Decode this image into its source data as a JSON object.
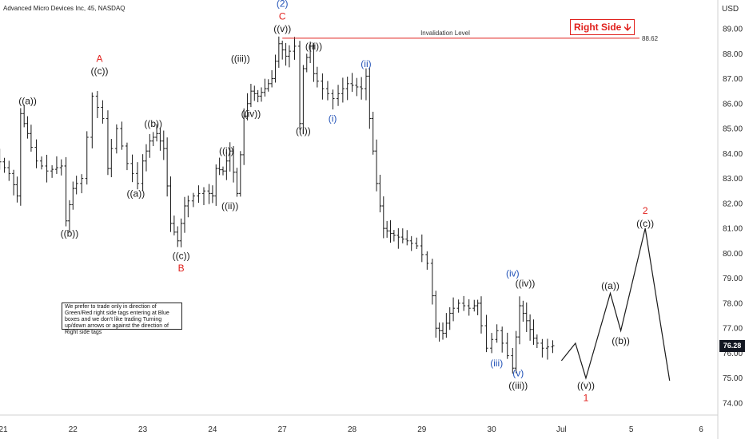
{
  "chart_title": "Advanced Micro Devices Inc, 45, NASDAQ",
  "currency_label": "USD",
  "invalidation": {
    "label": "Invalidation Level",
    "value": "88.62",
    "price": 88.62
  },
  "right_side_tag": {
    "label": "Right Side",
    "arrow": "🡫"
  },
  "current_price": "76.28",
  "note": "We prefer to trade only in direction of Green/Red right side tags entering at Blue boxes and we don't like trading Turning up/down arrows or against the direction of Right side tags",
  "colors": {
    "black": "#1a1a1a",
    "blue": "#2454b8",
    "red": "#e0201c",
    "line": "#e0201c"
  },
  "chart_data": {
    "type": "ohlc",
    "title": "Advanced Micro Devices Inc, 45, NASDAQ",
    "y_range": [
      73.3,
      90.2
    ],
    "y_ticks": [
      74,
      75,
      76,
      77,
      78,
      79,
      80,
      81,
      82,
      83,
      84,
      85,
      86,
      87,
      88,
      89
    ],
    "y_tick_labels": [
      "74.00",
      "75.00",
      "76.00",
      "77.00",
      "78.00",
      "79.00",
      "80.00",
      "81.00",
      "82.00",
      "83.00",
      "84.00",
      "85.00",
      "86.00",
      "87.00",
      "88.00",
      "89.00"
    ],
    "x_range": [
      21,
      38
    ],
    "x_ticks": [
      {
        "x": 21.0,
        "label": "21"
      },
      {
        "x": 22.0,
        "label": "22"
      },
      {
        "x": 23.0,
        "label": "23"
      },
      {
        "x": 24.0,
        "label": "24"
      },
      {
        "x": 25.0,
        "label": "27"
      },
      {
        "x": 26.0,
        "label": "28"
      },
      {
        "x": 27.0,
        "label": "29"
      },
      {
        "x": 28.0,
        "label": "30"
      },
      {
        "x": 29.0,
        "label": "Jul"
      },
      {
        "x": 30.0,
        "label": "5"
      },
      {
        "x": 31.0,
        "label": "6"
      }
    ],
    "price_path": [
      [
        20.95,
        83.9
      ],
      [
        21.15,
        83.2
      ],
      [
        21.25,
        82.3
      ],
      [
        21.3,
        85.6
      ],
      [
        21.4,
        84.8
      ],
      [
        21.55,
        83.7
      ],
      [
        21.7,
        83.3
      ],
      [
        21.9,
        83.5
      ],
      [
        21.95,
        81.3
      ],
      [
        22.05,
        82.6
      ],
      [
        22.2,
        83.0
      ],
      [
        22.35,
        86.3
      ],
      [
        22.5,
        85.4
      ],
      [
        22.55,
        83.4
      ],
      [
        22.7,
        85.0
      ],
      [
        22.85,
        83.6
      ],
      [
        23.0,
        82.8
      ],
      [
        23.05,
        83.7
      ],
      [
        23.15,
        84.5
      ],
      [
        23.25,
        84.8
      ],
      [
        23.35,
        84.2
      ],
      [
        23.45,
        81.2
      ],
      [
        23.55,
        80.5
      ],
      [
        23.65,
        81.9
      ],
      [
        23.8,
        82.3
      ],
      [
        23.95,
        82.5
      ],
      [
        24.05,
        82.3
      ],
      [
        24.1,
        83.4
      ],
      [
        24.2,
        83.3
      ],
      [
        24.3,
        84.1
      ],
      [
        24.4,
        82.4
      ],
      [
        24.5,
        85.5
      ],
      [
        24.6,
        86.5
      ],
      [
        24.7,
        86.3
      ],
      [
        24.8,
        86.6
      ],
      [
        24.9,
        87.0
      ],
      [
        25.0,
        88.4
      ],
      [
        25.1,
        87.9
      ],
      [
        25.25,
        88.3
      ],
      [
        25.3,
        85.2
      ],
      [
        25.35,
        87.4
      ],
      [
        25.45,
        88.3
      ],
      [
        25.5,
        87.2
      ],
      [
        25.65,
        86.6
      ],
      [
        25.8,
        86.2
      ],
      [
        26.0,
        86.8
      ],
      [
        26.2,
        86.6
      ],
      [
        26.25,
        87.1
      ],
      [
        26.3,
        85.4
      ],
      [
        26.4,
        82.8
      ],
      [
        26.5,
        81.0
      ],
      [
        26.6,
        80.8
      ],
      [
        26.85,
        80.5
      ],
      [
        27.0,
        80.3
      ],
      [
        27.15,
        79.6
      ],
      [
        27.25,
        77.0
      ],
      [
        27.35,
        76.8
      ],
      [
        27.45,
        77.6
      ],
      [
        27.6,
        78.0
      ],
      [
        27.75,
        77.8
      ],
      [
        27.85,
        78.0
      ],
      [
        28.0,
        76.2
      ],
      [
        28.15,
        76.9
      ],
      [
        28.3,
        75.9
      ],
      [
        28.35,
        75.4
      ],
      [
        28.45,
        77.9
      ],
      [
        28.55,
        77.3
      ],
      [
        28.65,
        76.6
      ],
      [
        28.8,
        76.2
      ],
      [
        28.95,
        76.3
      ]
    ],
    "projection": [
      [
        29.0,
        75.7
      ],
      [
        29.2,
        76.4
      ],
      [
        29.35,
        75.0
      ],
      [
        29.7,
        78.4
      ],
      [
        29.85,
        76.9
      ],
      [
        30.2,
        81.0
      ],
      [
        30.55,
        74.9
      ]
    ],
    "labels": [
      {
        "text": "((a))",
        "x": 21.35,
        "y": 86.1,
        "color": "black"
      },
      {
        "text": "((b))",
        "x": 21.95,
        "y": 80.8,
        "color": "black"
      },
      {
        "text": "A",
        "x": 22.38,
        "y": 87.8,
        "color": "red"
      },
      {
        "text": "((c))",
        "x": 22.38,
        "y": 87.3,
        "color": "black"
      },
      {
        "text": "((a))",
        "x": 22.9,
        "y": 82.4,
        "color": "black"
      },
      {
        "text": "((b))",
        "x": 23.15,
        "y": 85.2,
        "color": "black"
      },
      {
        "text": "((c))",
        "x": 23.55,
        "y": 79.9,
        "color": "black"
      },
      {
        "text": "B",
        "x": 23.55,
        "y": 79.4,
        "color": "red"
      },
      {
        "text": "((i))",
        "x": 24.2,
        "y": 84.1,
        "color": "black"
      },
      {
        "text": "((ii))",
        "x": 24.25,
        "y": 81.9,
        "color": "black"
      },
      {
        "text": "((iii))",
        "x": 24.4,
        "y": 87.8,
        "color": "black"
      },
      {
        "text": "((iv))",
        "x": 24.55,
        "y": 85.6,
        "color": "black"
      },
      {
        "text": "(2)",
        "x": 25.0,
        "y": 90.0,
        "color": "blue"
      },
      {
        "text": "C",
        "x": 25.0,
        "y": 89.5,
        "color": "red"
      },
      {
        "text": "((v))",
        "x": 25.0,
        "y": 89.0,
        "color": "black"
      },
      {
        "text": "((i))",
        "x": 25.3,
        "y": 84.9,
        "color": "black"
      },
      {
        "text": "((ii))",
        "x": 25.45,
        "y": 88.3,
        "color": "black"
      },
      {
        "text": "(i)",
        "x": 25.72,
        "y": 85.4,
        "color": "blue"
      },
      {
        "text": "(ii)",
        "x": 26.2,
        "y": 87.6,
        "color": "blue"
      },
      {
        "text": "(iii)",
        "x": 28.07,
        "y": 75.6,
        "color": "blue"
      },
      {
        "text": "(iv)",
        "x": 28.3,
        "y": 79.2,
        "color": "blue"
      },
      {
        "text": "((iv))",
        "x": 28.48,
        "y": 78.8,
        "color": "black"
      },
      {
        "text": "(v)",
        "x": 28.38,
        "y": 75.2,
        "color": "blue"
      },
      {
        "text": "((iii))",
        "x": 28.38,
        "y": 74.7,
        "color": "black"
      },
      {
        "text": "((v))",
        "x": 29.35,
        "y": 74.7,
        "color": "black"
      },
      {
        "text": "1",
        "x": 29.35,
        "y": 74.2,
        "color": "red"
      },
      {
        "text": "((a))",
        "x": 29.7,
        "y": 78.7,
        "color": "black"
      },
      {
        "text": "((b))",
        "x": 29.85,
        "y": 76.5,
        "color": "black"
      },
      {
        "text": "2",
        "x": 30.2,
        "y": 81.7,
        "color": "red"
      },
      {
        "text": "((c))",
        "x": 30.2,
        "y": 81.2,
        "color": "black"
      }
    ]
  }
}
